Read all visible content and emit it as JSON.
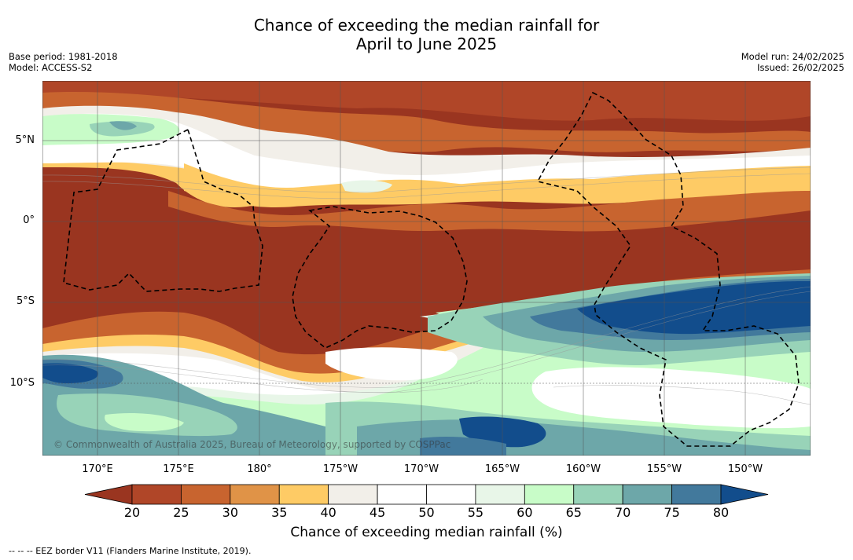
{
  "title": {
    "line1": "Chance of exceeding the median rainfall for",
    "line2": "April to June 2025"
  },
  "meta": {
    "base_period": "Base period: 1981-2018",
    "model": "Model: ACCESS-S2",
    "model_run": "Model run: 24/02/2025",
    "issued": "Issued: 26/02/2025"
  },
  "map": {
    "copyright": "© Commonwealth of Australia 2025, Bureau of Meteorology, supported by COSPPac",
    "lat_labels": [
      "5°N",
      "0°",
      "5°S",
      "10°S"
    ],
    "lon_labels": [
      "170°E",
      "175°E",
      "180°",
      "175°W",
      "170°W",
      "165°W",
      "160°W",
      "155°W",
      "150°W"
    ]
  },
  "colorbar": {
    "ticks": [
      "20",
      "25",
      "30",
      "35",
      "40",
      "45",
      "50",
      "55",
      "60",
      "65",
      "70",
      "75",
      "80"
    ],
    "colors": [
      "#9a3520",
      "#b04628",
      "#c8642f",
      "#e09347",
      "#fecb65",
      "#f2efe9",
      "#ffffff",
      "#ffffff",
      "#e8f6e8",
      "#c8fcc8",
      "#98d3b8",
      "#6da7a9",
      "#42799c",
      "#124d8c"
    ],
    "label": "Chance of exceeding median rainfall (%)"
  },
  "footnote": "--  --  -- EEZ border V11 (Flanders Marine Institute, 2019)."
}
